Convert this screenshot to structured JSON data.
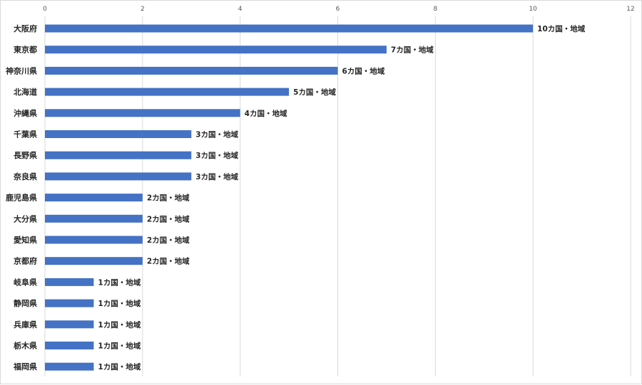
{
  "chart_data": {
    "type": "bar",
    "orientation": "horizontal",
    "categories": [
      "大阪府",
      "東京都",
      "神奈川県",
      "北海道",
      "沖縄県",
      "千葉県",
      "長野県",
      "奈良県",
      "鹿児島県",
      "大分県",
      "愛知県",
      "京都府",
      "岐阜県",
      "静岡県",
      "兵庫県",
      "栃木県",
      "福岡県"
    ],
    "values": [
      10,
      7,
      6,
      5,
      4,
      3,
      3,
      3,
      2,
      2,
      2,
      2,
      1,
      1,
      1,
      1,
      1
    ],
    "data_labels": [
      "10カ国・地域",
      "7カ国・地域",
      "6カ国・地域",
      "5カ国・地域",
      "4カ国・地域",
      "3カ国・地域",
      "3カ国・地域",
      "3カ国・地域",
      "2カ国・地域",
      "2カ国・地域",
      "2カ国・地域",
      "2カ国・地域",
      "1カ国・地域",
      "1カ国・地域",
      "1カ国・地域",
      "1カ国・地域",
      "1カ国・地域"
    ],
    "xlim": [
      0,
      12
    ],
    "x_ticks": [
      0,
      2,
      4,
      6,
      8,
      10,
      12
    ],
    "x_tick_labels": [
      "0",
      "2",
      "4",
      "6",
      "8",
      "10",
      "12"
    ],
    "x_axis_position": "top",
    "grid": true,
    "legend": "none",
    "title": "",
    "xlabel": "",
    "ylabel": "",
    "bar_color": "#4472c4",
    "grid_color": "#d9d9d9"
  }
}
